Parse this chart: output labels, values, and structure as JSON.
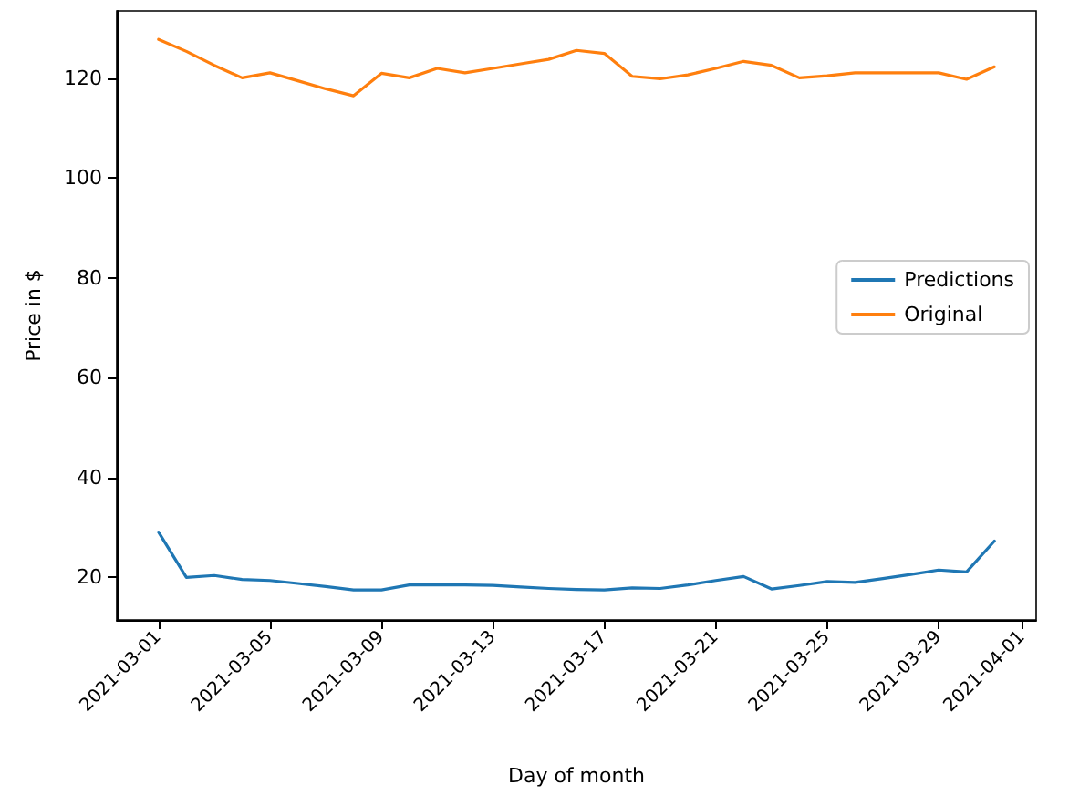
{
  "chart_data": {
    "type": "line",
    "xlabel": "Day of month",
    "ylabel": "Price in $",
    "x": [
      "2021-03-01",
      "2021-03-02",
      "2021-03-03",
      "2021-03-04",
      "2021-03-05",
      "2021-03-06",
      "2021-03-07",
      "2021-03-08",
      "2021-03-09",
      "2021-03-10",
      "2021-03-11",
      "2021-03-12",
      "2021-03-13",
      "2021-03-14",
      "2021-03-15",
      "2021-03-16",
      "2021-03-17",
      "2021-03-18",
      "2021-03-19",
      "2021-03-20",
      "2021-03-21",
      "2021-03-22",
      "2021-03-23",
      "2021-03-24",
      "2021-03-25",
      "2021-03-26",
      "2021-03-27",
      "2021-03-28",
      "2021-03-29",
      "2021-03-30",
      "2021-03-31"
    ],
    "series": [
      {
        "name": "Predictions",
        "color": "#1f77b4",
        "values": [
          29.1,
          20.0,
          20.4,
          19.6,
          19.4,
          18.8,
          18.2,
          17.5,
          17.5,
          18.5,
          18.5,
          18.5,
          18.4,
          18.1,
          17.8,
          17.6,
          17.5,
          17.9,
          17.8,
          18.5,
          19.4,
          20.2,
          17.7,
          18.4,
          19.2,
          19.0,
          19.8,
          20.6,
          21.5,
          21.1,
          27.3
        ]
      },
      {
        "name": "Original",
        "color": "#ff7f0e",
        "values": [
          127.8,
          125.4,
          122.6,
          120.1,
          121.1,
          119.5,
          117.9,
          116.5,
          121.0,
          120.1,
          122.0,
          121.1,
          122.0,
          122.9,
          123.8,
          125.6,
          125.0,
          120.4,
          119.9,
          120.7,
          122.0,
          123.4,
          122.6,
          120.1,
          120.5,
          121.1,
          121.1,
          121.1,
          121.1,
          119.8,
          122.3
        ]
      }
    ],
    "xlim": [
      "2021-02-27T12:00",
      "2021-04-01T12:00"
    ],
    "xticks": [
      "2021-03-01",
      "2021-03-05",
      "2021-03-09",
      "2021-03-13",
      "2021-03-17",
      "2021-03-21",
      "2021-03-25",
      "2021-03-29",
      "2021-04-01"
    ],
    "ylim": [
      11.5,
      133.5
    ],
    "yticks": [
      20,
      40,
      60,
      80,
      100,
      120
    ],
    "legend": "right",
    "grid": false
  }
}
